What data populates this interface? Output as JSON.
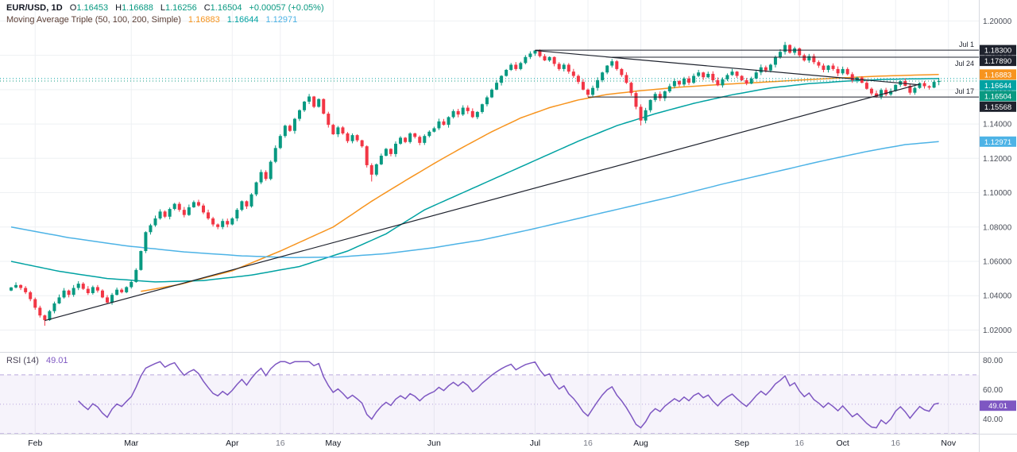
{
  "header": {
    "symbol": "EUR/USD, 1D",
    "open_label": "O",
    "open": "1.16453",
    "high_label": "H",
    "high": "1.16688",
    "low_label": "L",
    "low": "1.16256",
    "close_label": "C",
    "close": "1.16504",
    "change": "+0.00057 (+0.05%)"
  },
  "ma_legend": {
    "title": "Moving Average Triple (50, 100, 200, Simple)",
    "v50": "1.16883",
    "v100": "1.16644",
    "v200": "1.12971"
  },
  "rsi_legend": {
    "title": "RSI (14)",
    "value": "49.01"
  },
  "colors": {
    "up": "#089981",
    "down": "#f23645",
    "ma50": "#f7941e",
    "ma100": "#00a2a2",
    "ma200": "#4db3e6",
    "trend": "#1e222d",
    "grid": "#eef0f3",
    "axis_text": "#4a4e58",
    "time_major": "#131722",
    "time_minor": "#787b86",
    "badge_dark": "#1e222d",
    "rsi": "#7e57c2",
    "rsi_guide": "#b9a6dd",
    "separator": "#d6d9e0",
    "price_line": "#089981"
  },
  "chart_data": {
    "type": "candlestick",
    "symbol": "EUR/USD",
    "timeframe": "1D",
    "price_axis": {
      "max": 1.2085,
      "min": 1.0105,
      "ticks": [
        {
          "value": 1.2,
          "label": "1.20000"
        },
        {
          "value": 1.18,
          "label": "1.18000"
        },
        {
          "value": 1.16,
          "label": "1.16000"
        },
        {
          "value": 1.14,
          "label": "1.14000"
        },
        {
          "value": 1.12,
          "label": "1.12000"
        },
        {
          "value": 1.1,
          "label": "1.10000"
        },
        {
          "value": 1.08,
          "label": "1.08000"
        },
        {
          "value": 1.06,
          "label": "1.06000"
        },
        {
          "value": 1.04,
          "label": "1.04000"
        },
        {
          "value": 1.02,
          "label": "1.02000"
        }
      ]
    },
    "x_ticks": [
      {
        "label": "Feb",
        "day": 5,
        "minor": false
      },
      {
        "label": "Mar",
        "day": 25,
        "minor": false
      },
      {
        "label": "Apr",
        "day": 46,
        "minor": false
      },
      {
        "label": "16",
        "day": 56,
        "minor": true
      },
      {
        "label": "May",
        "day": 67,
        "minor": false
      },
      {
        "label": "Jun",
        "day": 88,
        "minor": false
      },
      {
        "label": "Jul",
        "day": 109,
        "minor": false
      },
      {
        "label": "16",
        "day": 120,
        "minor": true
      },
      {
        "label": "Aug",
        "day": 131,
        "minor": false
      },
      {
        "label": "Sep",
        "day": 152,
        "minor": false
      },
      {
        "label": "16",
        "day": 164,
        "minor": true
      },
      {
        "label": "Oct",
        "day": 173,
        "minor": false
      },
      {
        "label": "16",
        "day": 184,
        "minor": true
      },
      {
        "label": "Nov",
        "day": 195,
        "minor": false
      }
    ],
    "first_open": 1.043,
    "closes": [
      1.0448,
      1.0462,
      1.0445,
      1.042,
      1.038,
      1.033,
      1.0285,
      1.0258,
      1.031,
      1.0355,
      1.039,
      1.043,
      1.0405,
      1.0445,
      1.047,
      1.044,
      1.0415,
      1.045,
      1.043,
      1.039,
      1.036,
      1.0405,
      1.0435,
      1.042,
      1.045,
      1.048,
      1.055,
      1.066,
      1.077,
      1.081,
      1.085,
      1.089,
      1.086,
      1.0905,
      1.0935,
      1.09,
      1.087,
      1.0915,
      1.0945,
      1.0925,
      1.0885,
      1.085,
      1.0815,
      1.08,
      1.0835,
      1.0815,
      1.085,
      1.09,
      1.095,
      1.092,
      1.099,
      1.106,
      1.112,
      1.108,
      1.118,
      1.126,
      1.133,
      1.139,
      1.136,
      1.143,
      1.148,
      1.153,
      1.156,
      1.15,
      1.1545,
      1.146,
      1.1395,
      1.134,
      1.138,
      1.1345,
      1.13,
      1.1335,
      1.1305,
      1.127,
      1.116,
      1.1105,
      1.1165,
      1.1215,
      1.1255,
      1.1225,
      1.1285,
      1.132,
      1.1295,
      1.1345,
      1.1325,
      1.129,
      1.133,
      1.1355,
      1.1375,
      1.1415,
      1.1395,
      1.144,
      1.1475,
      1.1455,
      1.1495,
      1.1475,
      1.144,
      1.147,
      1.1515,
      1.1555,
      1.16,
      1.164,
      1.168,
      1.1715,
      1.1745,
      1.172,
      1.1755,
      1.179,
      1.181,
      1.1828,
      1.1795,
      1.177,
      1.179,
      1.175,
      1.172,
      1.1745,
      1.1705,
      1.168,
      1.1645,
      1.16,
      1.157,
      1.161,
      1.1655,
      1.17,
      1.174,
      1.1765,
      1.172,
      1.1685,
      1.164,
      1.158,
      1.15,
      1.142,
      1.148,
      1.154,
      1.1575,
      1.155,
      1.159,
      1.162,
      1.165,
      1.163,
      1.1665,
      1.164,
      1.168,
      1.17,
      1.1672,
      1.1692,
      1.1655,
      1.1625,
      1.166,
      1.1685,
      1.1705,
      1.168,
      1.1655,
      1.1635,
      1.1665,
      1.17,
      1.173,
      1.1712,
      1.1745,
      1.179,
      1.182,
      1.186,
      1.1815,
      1.184,
      1.18,
      1.177,
      1.1795,
      1.176,
      1.174,
      1.1715,
      1.174,
      1.172,
      1.1695,
      1.172,
      1.169,
      1.1655,
      1.167,
      1.164,
      1.1605,
      1.1578,
      1.156,
      1.1598,
      1.1572,
      1.1592,
      1.1628,
      1.165,
      1.1622,
      1.1582,
      1.161,
      1.1638,
      1.162,
      1.1612,
      1.1645,
      1.16504
    ],
    "wick_overrides": {
      "7": {
        "low": 1.0225
      },
      "62": {
        "high": 1.1575
      },
      "75": {
        "low": 1.1065
      },
      "109": {
        "high": 1.183
      },
      "120": {
        "low": 1.15568
      },
      "131": {
        "low": 1.1392
      },
      "161": {
        "high": 1.1878
      },
      "193": {
        "high": 1.16688,
        "low": 1.16256
      }
    },
    "moving_averages": [
      {
        "name": "SMA 50",
        "color_key": "ma50",
        "current": "1.16883",
        "points": [
          [
            27,
            1.0425
          ],
          [
            35,
            1.0465
          ],
          [
            46,
            1.0545
          ],
          [
            56,
            1.066
          ],
          [
            67,
            1.08
          ],
          [
            75,
            1.095
          ],
          [
            82,
            1.107
          ],
          [
            88,
            1.117
          ],
          [
            94,
            1.1265
          ],
          [
            100,
            1.1355
          ],
          [
            106,
            1.1435
          ],
          [
            112,
            1.1495
          ],
          [
            118,
            1.154
          ],
          [
            124,
            1.1572
          ],
          [
            131,
            1.1594
          ],
          [
            139,
            1.1614
          ],
          [
            147,
            1.1629
          ],
          [
            155,
            1.1641
          ],
          [
            163,
            1.1654
          ],
          [
            171,
            1.1666
          ],
          [
            179,
            1.1677
          ],
          [
            187,
            1.1684
          ],
          [
            193,
            1.16883
          ]
        ]
      },
      {
        "name": "SMA 100",
        "color_key": "ma100",
        "current": "1.16644",
        "points": [
          [
            0,
            1.06
          ],
          [
            10,
            1.0542
          ],
          [
            20,
            1.05
          ],
          [
            30,
            1.048
          ],
          [
            40,
            1.0488
          ],
          [
            50,
            1.052
          ],
          [
            60,
            1.057
          ],
          [
            70,
            1.066
          ],
          [
            78,
            1.076
          ],
          [
            86,
            1.09
          ],
          [
            94,
            1.1
          ],
          [
            102,
            1.11
          ],
          [
            110,
            1.12
          ],
          [
            118,
            1.13
          ],
          [
            126,
            1.139
          ],
          [
            134,
            1.146
          ],
          [
            142,
            1.152
          ],
          [
            150,
            1.157
          ],
          [
            158,
            1.161
          ],
          [
            166,
            1.1635
          ],
          [
            174,
            1.165
          ],
          [
            182,
            1.166
          ],
          [
            188,
            1.1663
          ],
          [
            193,
            1.16644
          ]
        ]
      },
      {
        "name": "SMA 200",
        "color_key": "ma200",
        "current": "1.12971",
        "points": [
          [
            0,
            1.08
          ],
          [
            12,
            1.0738
          ],
          [
            24,
            1.069
          ],
          [
            36,
            1.0655
          ],
          [
            48,
            1.0632
          ],
          [
            58,
            1.0622
          ],
          [
            68,
            1.0625
          ],
          [
            78,
            1.0645
          ],
          [
            88,
            1.068
          ],
          [
            98,
            1.0725
          ],
          [
            108,
            1.0785
          ],
          [
            118,
            1.085
          ],
          [
            128,
            1.0915
          ],
          [
            138,
            1.098
          ],
          [
            148,
            1.105
          ],
          [
            158,
            1.1115
          ],
          [
            168,
            1.118
          ],
          [
            178,
            1.124
          ],
          [
            186,
            1.128
          ],
          [
            193,
            1.12971
          ]
        ]
      }
    ],
    "price_lines": [
      {
        "price": 1.16644,
        "color_key": "ma100"
      },
      {
        "price": 1.16504,
        "color_key": "price_line"
      }
    ],
    "trendlines": [
      {
        "from_day": 7,
        "from_price": 1.0255,
        "to_day": 189,
        "to_price": 1.1632
      },
      {
        "from_day": 109,
        "from_price": 1.1828,
        "to_day": 189,
        "to_price": 1.1628
      }
    ],
    "key_levels": [
      {
        "price": 1.183,
        "label": "1.18300",
        "date_label": "Jul 1",
        "from_day": 109,
        "text_side": "above"
      },
      {
        "price": 1.1789,
        "label": "1.17890",
        "date_label": "Jul 24",
        "from_day": 125,
        "text_side": "below"
      },
      {
        "price": 1.15568,
        "label": "1.15568",
        "date_label": "Jul 17",
        "from_day": 120,
        "text_side": "above"
      }
    ],
    "axis_badges": [
      {
        "label": "1.18300",
        "color_key": "badge_dark",
        "price": 1.183
      },
      {
        "label": "1.17890",
        "color_key": "badge_dark",
        "price": 1.1789
      },
      {
        "label": "1.16883",
        "color_key": "ma50",
        "price": 1.16883
      },
      {
        "label": "1.16644",
        "color_key": "ma100",
        "price": 1.16644
      },
      {
        "label": "1.16504",
        "color_key": "up",
        "price": 1.16504
      },
      {
        "label": "1.15568",
        "color_key": "badge_dark",
        "price": 1.15568
      },
      {
        "label": "1.12971",
        "color_key": "ma200",
        "price": 1.12971
      }
    ],
    "rsi": {
      "title": "RSI (14)",
      "period": 14,
      "current_value": 49.01,
      "current_label": "49.01",
      "upper": 70,
      "lower": 30,
      "middle": 50,
      "axis_ticks": [
        {
          "value": 80,
          "label": "80.00"
        },
        {
          "value": 60,
          "label": "60.00"
        },
        {
          "value": 40,
          "label": "40.00"
        }
      ]
    }
  }
}
